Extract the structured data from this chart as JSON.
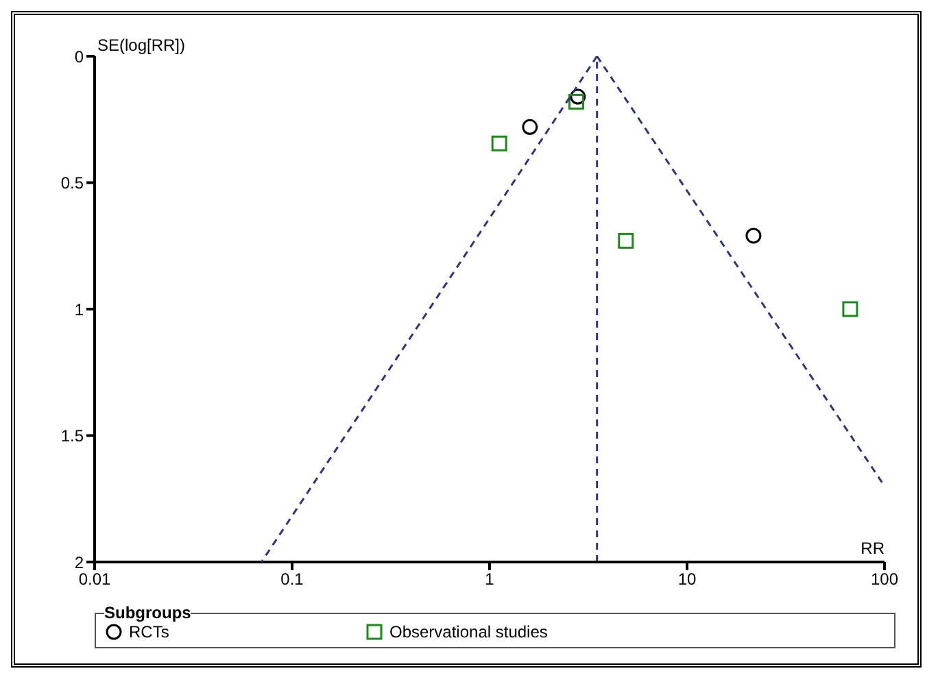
{
  "chart_data": {
    "type": "scatter",
    "xlabel": "RR",
    "ylabel": "SE(log[RR])",
    "legend_title": "Subgroups",
    "legend": "bottom",
    "log": "x",
    "grid": false,
    "xlim": [
      0.01,
      100
    ],
    "xticks": [
      0.01,
      0.1,
      1,
      10,
      100
    ],
    "ylim": [
      2,
      0
    ],
    "yticks": [
      0,
      0.5,
      1,
      1.5,
      2
    ],
    "series": [
      {
        "name": "RCTs",
        "color": "#000000",
        "marker": "circle",
        "x": [
          1.6,
          2.8,
          21.7
        ],
        "values": [
          0.28,
          0.16,
          0.71
        ]
      },
      {
        "name": "Observational studies",
        "color": "#1a8a1a",
        "marker": "square",
        "x": [
          1.12,
          2.75,
          4.9,
          67
        ],
        "values": [
          0.345,
          0.18,
          0.73,
          1.0
        ]
      },
      {
        "type": "line",
        "color": "#33337f",
        "line_style": "dashed",
        "x": [
          3.5,
          0.07
        ],
        "values": [
          0,
          2
        ]
      },
      {
        "type": "line",
        "color": "#33337f",
        "line_style": "dashed",
        "x": [
          3.5,
          100
        ],
        "values": [
          0,
          1.7
        ]
      }
    ],
    "ref_lines": [
      {
        "axis": "x",
        "value": 3.5,
        "color": "#33337f",
        "line_style": "dashed"
      }
    ]
  }
}
